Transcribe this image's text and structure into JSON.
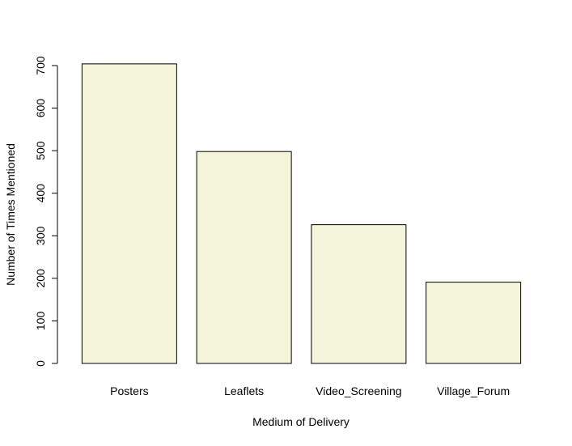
{
  "chart_data": {
    "type": "bar",
    "categories": [
      "Posters",
      "Leaflets",
      "Video_Screening",
      "Village_Forum"
    ],
    "values": [
      704,
      498,
      326,
      191
    ],
    "title": "",
    "xlabel": "Medium of Delivery",
    "ylabel": "Number of Times Mentioned",
    "ylim": [
      0,
      700
    ],
    "yticks": [
      0,
      100,
      200,
      300,
      400,
      500,
      600,
      700
    ],
    "grid": false,
    "bar_color": "#f5f5dc",
    "bar_edge_color": "#000000"
  }
}
